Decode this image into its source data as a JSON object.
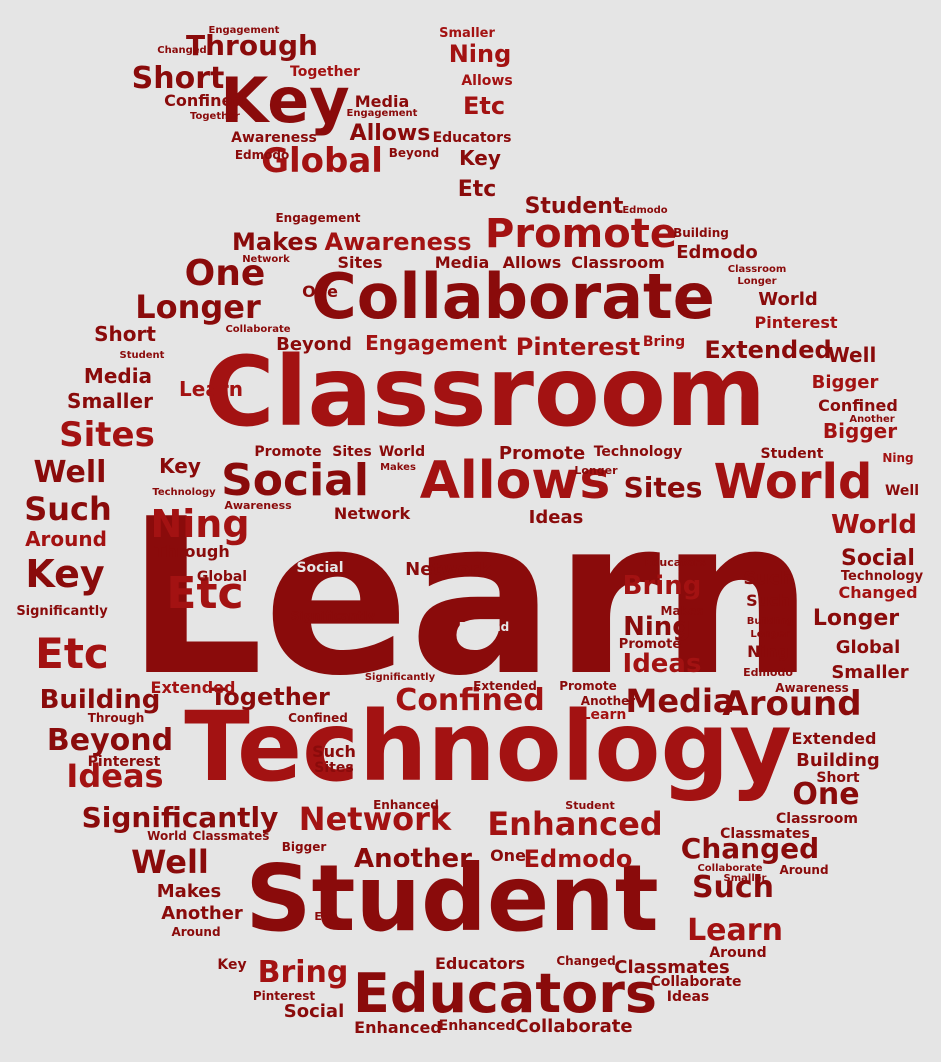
{
  "colors": {
    "background": "#e5e5e5",
    "dark": "#8a0b0b",
    "medium": "#a31212",
    "light": "#b21a1a"
  },
  "words": [
    "Learn",
    "Technology",
    "Classroom",
    "Student",
    "Collaborate",
    "Educators",
    "Allows",
    "World",
    "Social",
    "Promote",
    "Key",
    "Etc",
    "Ning",
    "Network",
    "Enhanced",
    "Confined",
    "Significantly",
    "Media",
    "Around",
    "Through",
    "Global",
    "Short",
    "Together",
    "Awareness",
    "Edmodo",
    "Beyond",
    "Engagement",
    "Smaller",
    "Changed",
    "One",
    "Makes",
    "Longer",
    "Sites",
    "Pinterest",
    "Extended",
    "Building",
    "Bigger",
    "Well",
    "Ideas",
    "Such",
    "Another",
    "Bring",
    "Classmates"
  ]
}
